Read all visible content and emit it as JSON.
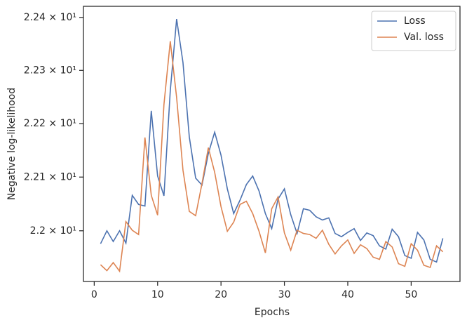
{
  "chart_data": {
    "type": "line",
    "xlabel": "Epochs",
    "ylabel": "Negative log-likelihood",
    "x": [
      1,
      2,
      3,
      4,
      5,
      6,
      7,
      8,
      9,
      10,
      11,
      12,
      13,
      14,
      15,
      16,
      17,
      18,
      19,
      20,
      21,
      22,
      23,
      24,
      25,
      26,
      27,
      28,
      29,
      30,
      31,
      32,
      33,
      34,
      35,
      36,
      37,
      38,
      39,
      40,
      41,
      42,
      43,
      44,
      45,
      46,
      47,
      48,
      49,
      50,
      51,
      52,
      53,
      54,
      55
    ],
    "series": [
      {
        "name": "Loss",
        "color": "#4c72b0",
        "values": [
          21.976,
          22.0,
          21.98,
          22.0,
          21.977,
          22.066,
          22.049,
          22.046,
          22.224,
          22.102,
          22.065,
          22.262,
          22.397,
          22.315,
          22.175,
          22.098,
          22.085,
          22.144,
          22.184,
          22.141,
          22.078,
          22.032,
          22.057,
          22.086,
          22.102,
          22.074,
          22.032,
          22.004,
          22.059,
          22.078,
          22.03,
          21.995,
          22.041,
          22.038,
          22.026,
          22.02,
          22.024,
          21.995,
          21.989,
          21.997,
          22.004,
          21.982,
          21.996,
          21.991,
          21.972,
          21.966,
          22.003,
          21.989,
          21.954,
          21.949,
          21.997,
          21.983,
          21.947,
          21.942,
          21.986
        ]
      },
      {
        "name": "Val. loss",
        "color": "#dd8452",
        "values": [
          21.937,
          21.926,
          21.941,
          21.925,
          22.017,
          22.001,
          21.993,
          22.174,
          22.066,
          22.029,
          22.236,
          22.355,
          22.249,
          22.113,
          22.036,
          22.028,
          22.088,
          22.155,
          22.109,
          22.045,
          21.999,
          22.016,
          22.049,
          22.055,
          22.032,
          21.999,
          21.959,
          22.041,
          22.063,
          21.996,
          21.964,
          22.001,
          21.995,
          21.993,
          21.986,
          22.001,
          21.975,
          21.957,
          21.972,
          21.983,
          21.958,
          21.974,
          21.967,
          21.951,
          21.947,
          21.98,
          21.97,
          21.939,
          21.934,
          21.976,
          21.964,
          21.936,
          21.932,
          21.972,
          21.961
        ]
      }
    ],
    "xlim": [
      -1.7,
      57.7
    ],
    "xticks": [
      0,
      10,
      20,
      30,
      40,
      50
    ],
    "ylim": [
      21.906,
      22.421
    ],
    "yscale": "log",
    "yticks": [
      {
        "value": 22.0,
        "label": "2.2 × 10¹"
      },
      {
        "value": 22.1,
        "label": "2.21 × 10¹"
      },
      {
        "value": 22.2,
        "label": "2.22 × 10¹"
      },
      {
        "value": 22.3,
        "label": "2.23 × 10¹"
      },
      {
        "value": 22.4,
        "label": "2.24 × 10¹"
      }
    ],
    "legend": "upper right"
  }
}
